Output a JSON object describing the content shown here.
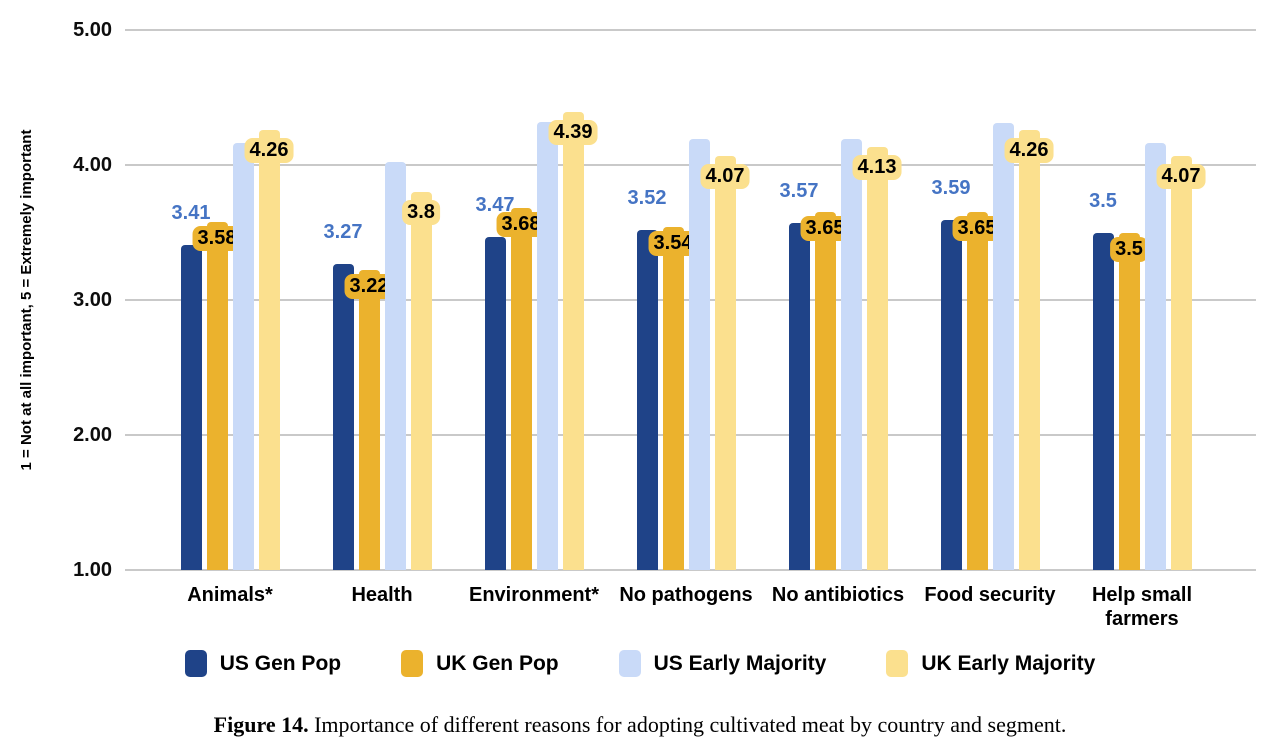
{
  "caption": {
    "label": "Figure 14.",
    "text": "Importance of different reasons for adopting cultivated meat by country and segment."
  },
  "chart_data": {
    "type": "bar",
    "title": "",
    "xlabel": "",
    "ylabel": "1 = Not at all important, 5 = Extremely important",
    "ylim": [
      1,
      5
    ],
    "yticks": [
      {
        "value": 5,
        "label": "5.00"
      },
      {
        "value": 4,
        "label": "4.00"
      },
      {
        "value": 3,
        "label": "3.00"
      },
      {
        "value": 2,
        "label": "2.00"
      },
      {
        "value": 1,
        "label": "1.00"
      }
    ],
    "grid": "horizontal",
    "gridline_color": "#C9C9C9",
    "legend_position": "bottom",
    "categories": [
      "Animals*",
      "Health",
      "Environment*",
      "No pathogens",
      "No antibiotics",
      "Food security",
      "Help small\nfarmers"
    ],
    "series": [
      {
        "name": "US Gen Pop",
        "color": "#1F4388",
        "label_style": "value-above",
        "label_color": "#4574C4",
        "labels_visible": true,
        "values": [
          3.41,
          3.27,
          3.47,
          3.52,
          3.57,
          3.59,
          3.5
        ],
        "labels": [
          "3.41",
          "3.27",
          "3.47",
          "3.52",
          "3.57",
          "3.59",
          "3.5"
        ]
      },
      {
        "name": "UK Gen Pop",
        "color": "#EBB22D",
        "label_style": "badge",
        "labels_visible": true,
        "values": [
          3.58,
          3.22,
          3.68,
          3.54,
          3.65,
          3.65,
          3.5
        ],
        "labels": [
          "3.58",
          "3.22",
          "3.68",
          "3.54",
          "3.65",
          "3.65",
          "3.5"
        ]
      },
      {
        "name": "US Early Majority",
        "color": "#C9DAF8",
        "label_style": "none",
        "labels_visible": false,
        "values_estimated_from_gridlines": true,
        "values": [
          4.16,
          4.02,
          4.32,
          4.19,
          4.19,
          4.31,
          4.16
        ]
      },
      {
        "name": "UK Early Majority",
        "color": "#FBE08E",
        "label_style": "badge",
        "labels_visible": true,
        "values": [
          4.26,
          3.8,
          4.39,
          4.07,
          4.13,
          4.26,
          4.07
        ],
        "labels": [
          "4.26",
          "3.8",
          "4.39",
          "4.07",
          "4.13",
          "4.26",
          "4.07"
        ]
      }
    ]
  }
}
